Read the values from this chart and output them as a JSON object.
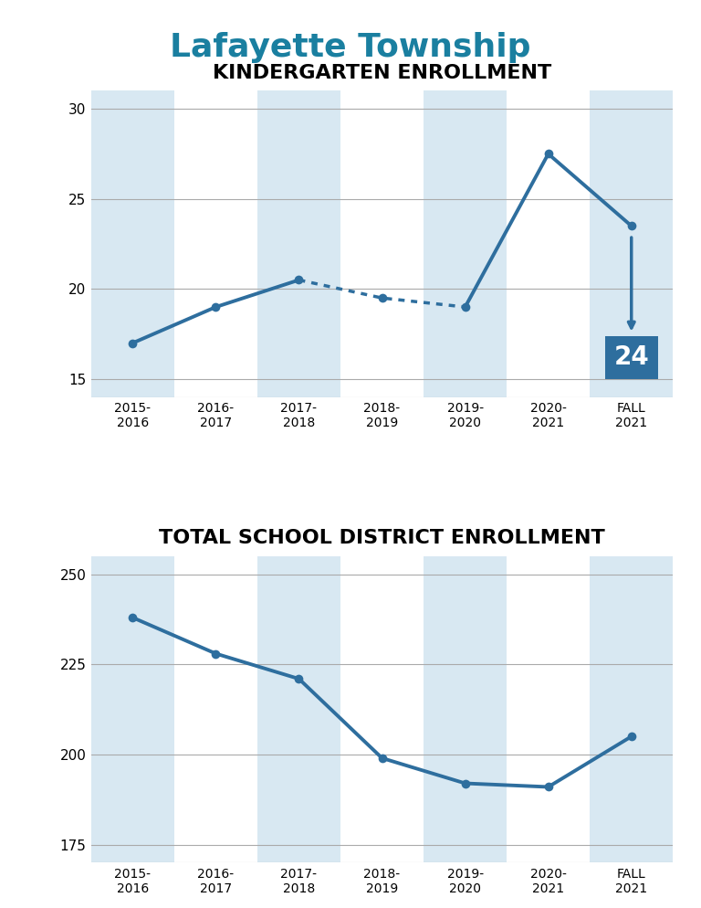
{
  "title": "Lafayette Township",
  "title_color": "#1a7fa0",
  "chart1_title": "KINDERGARTEN ENROLLMENT",
  "chart2_title": "TOTAL SCHOOL DISTRICT ENROLLMENT",
  "x_labels": [
    "2015-\n2016",
    "2016-\n2017",
    "2017-\n2018",
    "2018-\n2019",
    "2019-\n2020",
    "2020-\n2021",
    "FALL\n2021"
  ],
  "kg_values": [
    17,
    19,
    20.5,
    19.5,
    19,
    27.5,
    23.5
  ],
  "kg_ylim": [
    14,
    31
  ],
  "kg_yticks": [
    15,
    20,
    25,
    30
  ],
  "kg_annotation_value": "24",
  "total_values": [
    238,
    228,
    221,
    199,
    192,
    191,
    205
  ],
  "total_ylim": [
    170,
    255
  ],
  "total_yticks": [
    175,
    200,
    225,
    250
  ],
  "line_color": "#2e6e9e",
  "dot_color": "#2e6e9e",
  "bg_stripe_color": "#d8e8f2",
  "bg_white": "#ffffff",
  "annotation_box_color": "#2e6e9e",
  "annotation_text_color": "#ffffff",
  "grid_color": "#aaaaaa",
  "stripe_columns": [
    0,
    2,
    4,
    6
  ]
}
